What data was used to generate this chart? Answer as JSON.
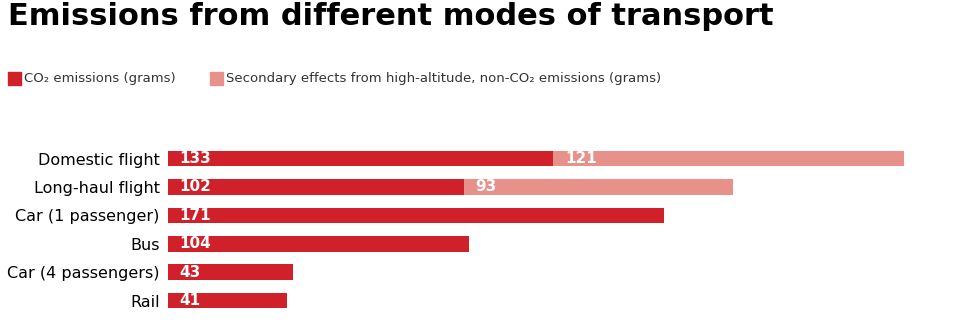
{
  "title": "Emissions from different modes of transport",
  "title_fontsize": 22,
  "title_fontweight": "bold",
  "categories": [
    "Domestic flight",
    "Long-haul flight",
    "Car (1 passenger)",
    "Bus",
    "Car (4 passengers)",
    "Rail"
  ],
  "co2_values": [
    133,
    102,
    171,
    104,
    43,
    41
  ],
  "secondary_values": [
    121,
    93,
    0,
    0,
    0,
    0
  ],
  "co2_color": "#d0202a",
  "secondary_color": "#e8908a",
  "bar_height": 0.55,
  "legend_label_co2": "CO₂ emissions (grams)",
  "legend_label_secondary": "Secondary effects from high-altitude, non-CO₂ emissions (grams)",
  "background_color": "#ffffff",
  "label_color": "#ffffff",
  "label_fontsize": 11,
  "category_fontsize": 11.5,
  "xlim": [
    0,
    270
  ]
}
